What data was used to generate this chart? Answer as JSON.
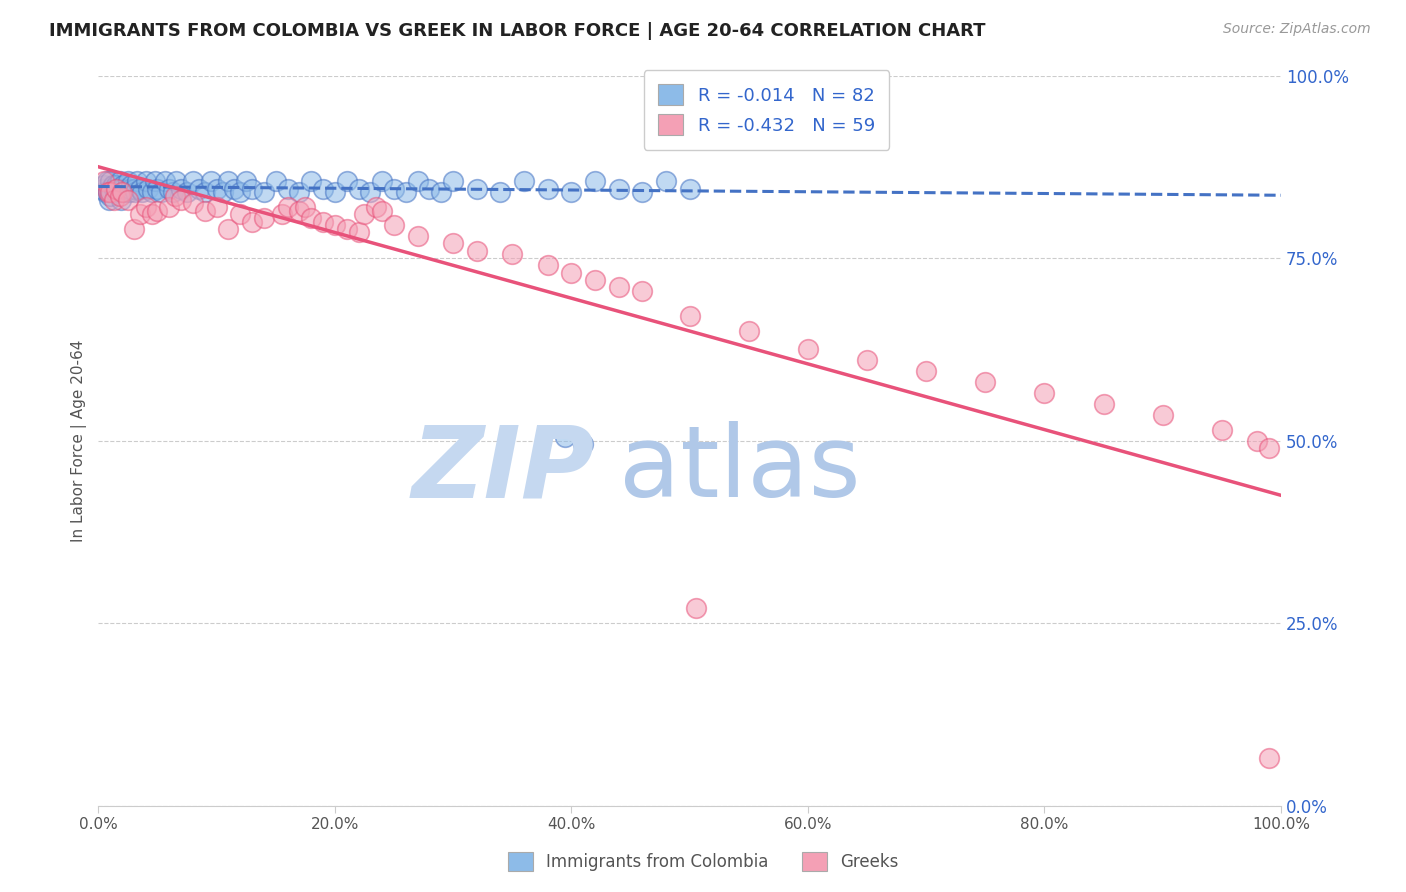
{
  "title": "IMMIGRANTS FROM COLOMBIA VS GREEK IN LABOR FORCE | AGE 20-64 CORRELATION CHART",
  "source": "Source: ZipAtlas.com",
  "ylabel": "In Labor Force | Age 20-64",
  "xlim": [
    0.0,
    1.0
  ],
  "ylim": [
    0.0,
    1.0
  ],
  "xticks": [
    0.0,
    0.2,
    0.4,
    0.6,
    0.8,
    1.0
  ],
  "yticks_right": [
    0.0,
    0.25,
    0.5,
    0.75,
    1.0
  ],
  "colombia_R": "-0.014",
  "colombia_N": "82",
  "greek_R": "-0.432",
  "greek_N": "59",
  "colombia_color": "#8DBBE8",
  "greek_color": "#F4A0B5",
  "colombia_line_color": "#4472C4",
  "greek_line_color": "#E8527A",
  "legend_text_color": "#3366CC",
  "watermark_zip_color": "#C5D8F0",
  "watermark_atlas_color": "#B0C8E8",
  "colombia_scatter_x": [
    0.003,
    0.005,
    0.006,
    0.007,
    0.008,
    0.009,
    0.01,
    0.01,
    0.01,
    0.012,
    0.013,
    0.014,
    0.015,
    0.016,
    0.017,
    0.018,
    0.019,
    0.02,
    0.021,
    0.022,
    0.023,
    0.025,
    0.026,
    0.027,
    0.028,
    0.03,
    0.031,
    0.033,
    0.035,
    0.037,
    0.04,
    0.042,
    0.045,
    0.048,
    0.05,
    0.053,
    0.056,
    0.06,
    0.063,
    0.066,
    0.07,
    0.075,
    0.08,
    0.085,
    0.09,
    0.095,
    0.1,
    0.105,
    0.11,
    0.115,
    0.12,
    0.125,
    0.13,
    0.14,
    0.15,
    0.16,
    0.17,
    0.18,
    0.19,
    0.2,
    0.21,
    0.22,
    0.23,
    0.24,
    0.25,
    0.26,
    0.27,
    0.28,
    0.29,
    0.3,
    0.32,
    0.34,
    0.36,
    0.38,
    0.4,
    0.42,
    0.44,
    0.46,
    0.48,
    0.5,
    0.395,
    0.41
  ],
  "colombia_scatter_y": [
    0.845,
    0.85,
    0.84,
    0.855,
    0.84,
    0.83,
    0.845,
    0.855,
    0.835,
    0.85,
    0.845,
    0.84,
    0.85,
    0.845,
    0.84,
    0.855,
    0.83,
    0.845,
    0.85,
    0.84,
    0.845,
    0.855,
    0.84,
    0.845,
    0.85,
    0.845,
    0.84,
    0.855,
    0.845,
    0.84,
    0.855,
    0.845,
    0.84,
    0.855,
    0.845,
    0.84,
    0.855,
    0.845,
    0.84,
    0.855,
    0.845,
    0.84,
    0.855,
    0.845,
    0.84,
    0.855,
    0.845,
    0.84,
    0.855,
    0.845,
    0.84,
    0.855,
    0.845,
    0.84,
    0.855,
    0.845,
    0.84,
    0.855,
    0.845,
    0.84,
    0.855,
    0.845,
    0.84,
    0.855,
    0.845,
    0.84,
    0.855,
    0.845,
    0.84,
    0.855,
    0.845,
    0.84,
    0.855,
    0.845,
    0.84,
    0.855,
    0.845,
    0.84,
    0.855,
    0.845,
    0.505,
    0.495
  ],
  "greek_scatter_x": [
    0.005,
    0.008,
    0.01,
    0.013,
    0.015,
    0.018,
    0.02,
    0.025,
    0.03,
    0.035,
    0.04,
    0.045,
    0.05,
    0.06,
    0.065,
    0.07,
    0.08,
    0.09,
    0.1,
    0.11,
    0.12,
    0.13,
    0.14,
    0.155,
    0.16,
    0.17,
    0.175,
    0.18,
    0.19,
    0.2,
    0.21,
    0.22,
    0.225,
    0.235,
    0.24,
    0.25,
    0.27,
    0.3,
    0.32,
    0.35,
    0.38,
    0.4,
    0.42,
    0.44,
    0.46,
    0.5,
    0.55,
    0.6,
    0.65,
    0.7,
    0.75,
    0.8,
    0.85,
    0.9,
    0.95,
    0.98,
    0.99,
    0.505,
    0.99
  ],
  "greek_scatter_y": [
    0.855,
    0.84,
    0.84,
    0.83,
    0.845,
    0.835,
    0.84,
    0.83,
    0.79,
    0.81,
    0.82,
    0.81,
    0.815,
    0.82,
    0.835,
    0.83,
    0.825,
    0.815,
    0.82,
    0.79,
    0.81,
    0.8,
    0.805,
    0.81,
    0.82,
    0.815,
    0.82,
    0.805,
    0.8,
    0.795,
    0.79,
    0.785,
    0.81,
    0.82,
    0.815,
    0.795,
    0.78,
    0.77,
    0.76,
    0.755,
    0.74,
    0.73,
    0.72,
    0.71,
    0.705,
    0.67,
    0.65,
    0.625,
    0.61,
    0.595,
    0.58,
    0.565,
    0.55,
    0.535,
    0.515,
    0.5,
    0.49,
    0.27,
    0.065
  ],
  "colombia_trendline_x": [
    0.0,
    1.0
  ],
  "colombia_trendline_y": [
    0.848,
    0.836
  ],
  "greek_trendline_x": [
    0.0,
    1.0
  ],
  "greek_trendline_y": [
    0.875,
    0.425
  ]
}
